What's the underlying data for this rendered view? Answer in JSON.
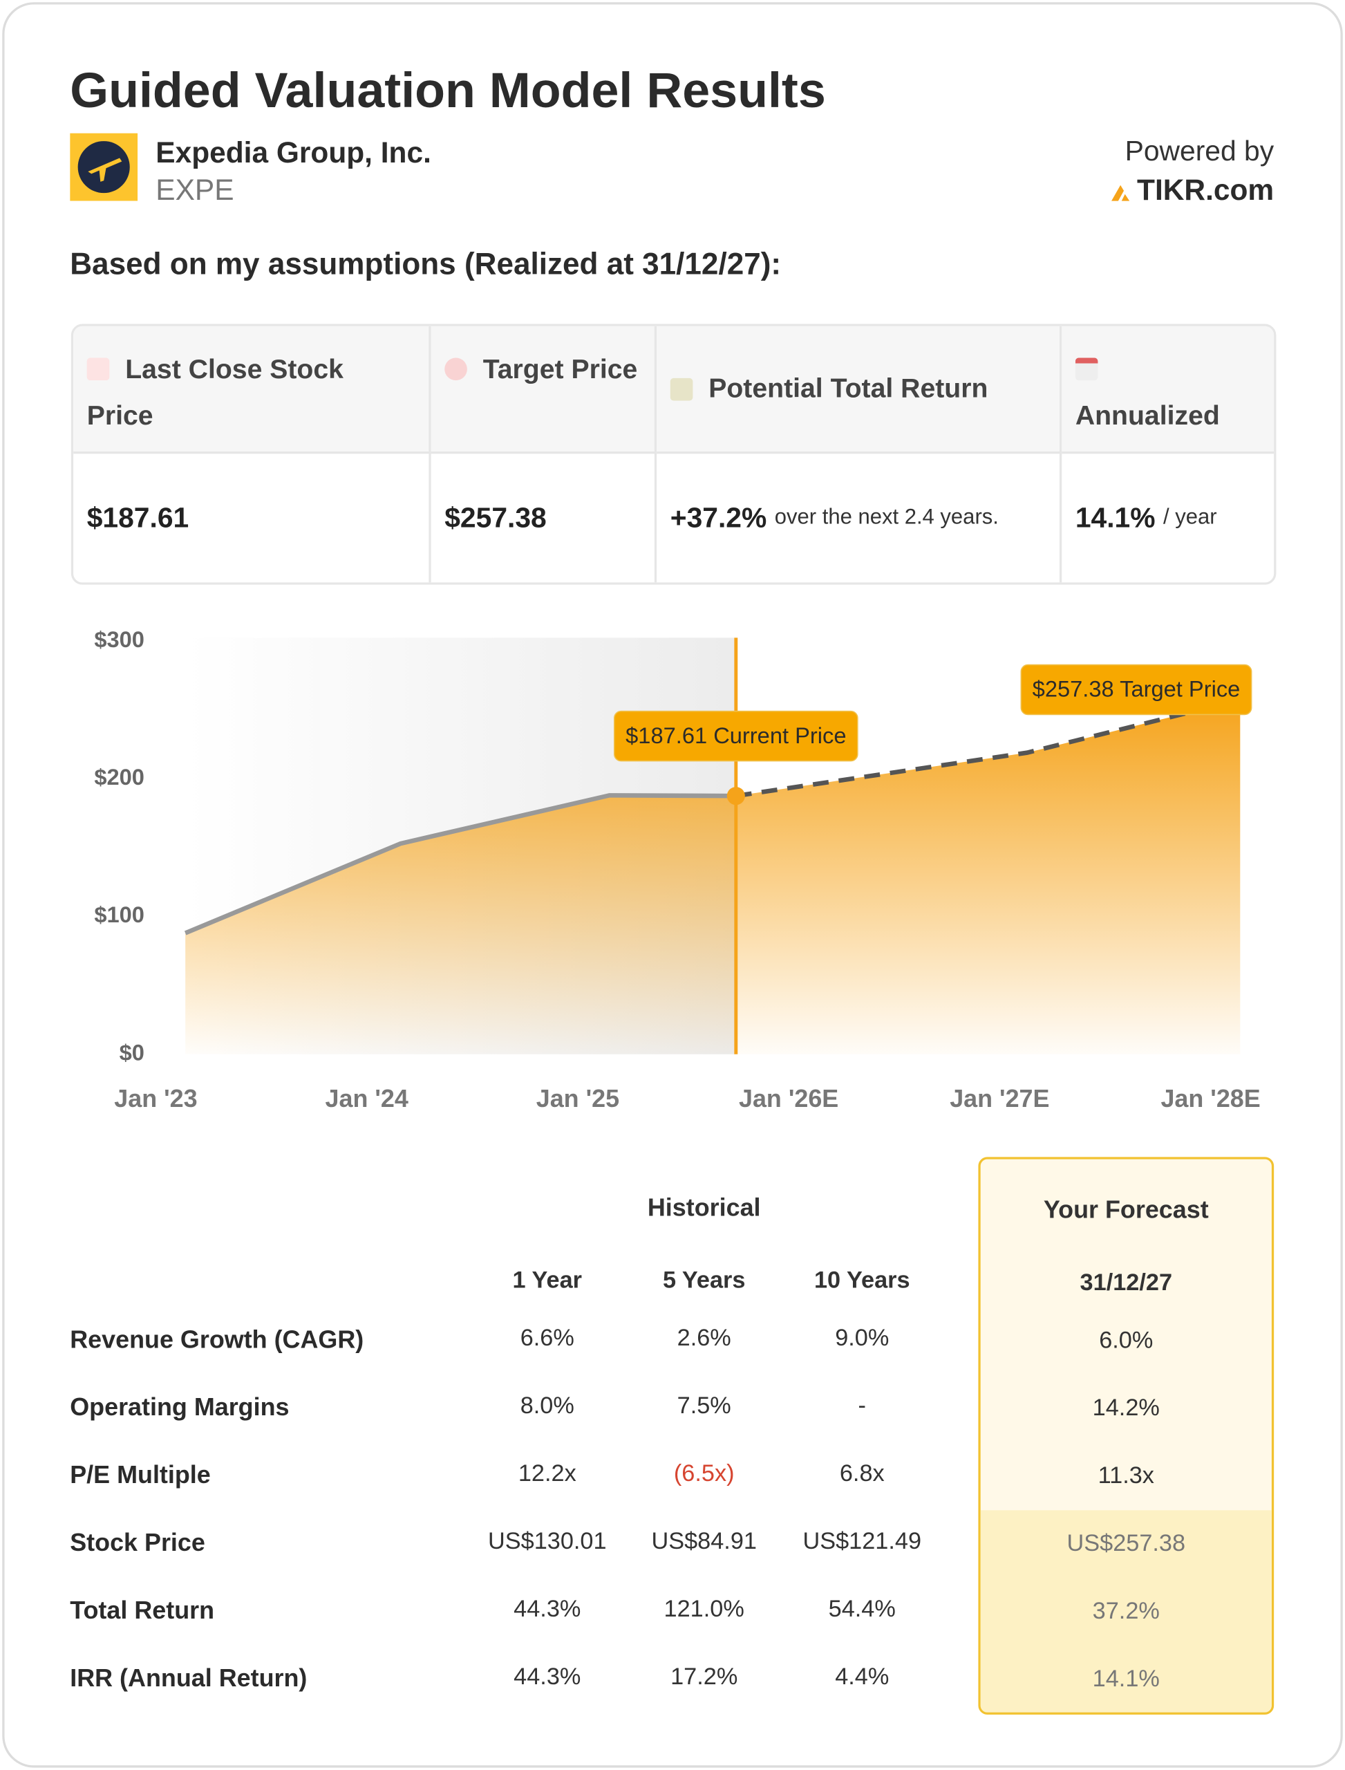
{
  "header": {
    "title": "Guided Valuation Model Results",
    "company": "Expedia Group, Inc.",
    "ticker": "EXPE",
    "powered_by": "Powered by",
    "brand": "TIKR.com"
  },
  "subtitle": "Based on my assumptions (Realized at 31/12/27):",
  "summary": {
    "columns": [
      "Last Close Stock Price",
      "Target Price",
      "Potential Total Return",
      "Annualized"
    ],
    "values": [
      {
        "main": "$187.61"
      },
      {
        "main": "$257.38"
      },
      {
        "main": "+37.2%",
        "note": "over the next 2.4 years."
      },
      {
        "main": "14.1%",
        "note": "/ year"
      }
    ]
  },
  "chart_data": {
    "type": "area",
    "xlim": [
      2022.7,
      2028.3
    ],
    "ylim": [
      0,
      300
    ],
    "xticks": [
      {
        "value": 2023,
        "label": "Jan '23"
      },
      {
        "value": 2024,
        "label": "Jan '24"
      },
      {
        "value": 2025,
        "label": "Jan '25"
      },
      {
        "value": 2026,
        "label": "Jan '26E"
      },
      {
        "value": 2027,
        "label": "Jan '27E"
      },
      {
        "value": 2028,
        "label": "Jan '28E"
      }
    ],
    "yticks": [
      {
        "value": 0,
        "label": "$0"
      },
      {
        "value": 100,
        "label": "$100"
      },
      {
        "value": 200,
        "label": "$200"
      },
      {
        "value": 300,
        "label": "$300"
      }
    ],
    "fill_color": "#f5a31a",
    "series": [
      {
        "color": "#999999",
        "style": "solid",
        "x": [
          2023.14,
          2024.16,
          2025.15,
          2025.75
        ],
        "values": [
          88,
          153,
          188,
          187.61
        ]
      },
      {
        "color": "#555555",
        "style": "dashed",
        "x": [
          2025.75,
          2027.13,
          2028.14
        ],
        "values": [
          187.61,
          219,
          257.38
        ]
      }
    ],
    "annotations": [
      {
        "text": "$187.61 Current Price",
        "x": 2025.75,
        "y": 187.61,
        "vertical_line": true
      },
      {
        "text": "$257.38 Target Price",
        "x": 2028.14,
        "y": 257.38,
        "vertical_line": false
      }
    ]
  },
  "table": {
    "group_header": "Historical",
    "forecast_header": "Your Forecast",
    "columns": [
      "1 Year",
      "5 Years",
      "10 Years",
      "31/12/27"
    ],
    "negative_color": "#d64530",
    "rows": [
      {
        "label": "Revenue Growth (CAGR)",
        "cells": [
          "6.6%",
          "2.6%",
          "9.0%",
          "6.0%"
        ]
      },
      {
        "label": "Operating Margins",
        "cells": [
          "8.0%",
          "7.5%",
          "-",
          "14.2%"
        ]
      },
      {
        "label": "P/E Multiple",
        "cells": [
          "12.2x",
          "(6.5x)",
          "6.8x",
          "11.3x"
        ]
      },
      {
        "label": "Stock Price",
        "cells": [
          "US$130.01",
          "US$84.91",
          "US$121.49",
          "US$257.38"
        ]
      },
      {
        "label": "Total Return",
        "cells": [
          "44.3%",
          "121.0%",
          "54.4%",
          "37.2%"
        ]
      },
      {
        "label": "IRR (Annual Return)",
        "cells": [
          "44.3%",
          "17.2%",
          "4.4%",
          "14.1%"
        ]
      }
    ]
  }
}
